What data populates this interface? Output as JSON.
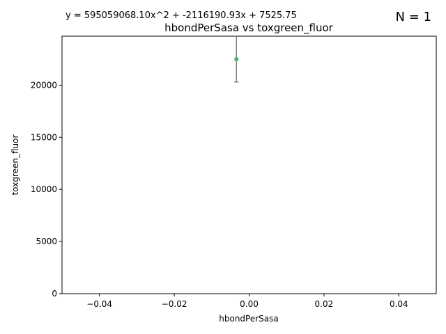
{
  "figure": {
    "equation": "y = 595059068.10x^2 + -2116190.93x + 7525.75",
    "n_label": "N = 1"
  },
  "chart_data": {
    "type": "scatter",
    "title": "hbondPerSasa vs toxgreen_fluor",
    "xlabel": "hbondPerSasa",
    "ylabel": "toxgreen_fluor",
    "xlim": [
      -0.05,
      0.05
    ],
    "ylim": [
      0,
      24700
    ],
    "xticks": [
      -0.04,
      -0.02,
      0.0,
      0.02,
      0.04
    ],
    "xtick_labels": [
      "−0.04",
      "−0.02",
      "0.00",
      "0.02",
      "0.04"
    ],
    "yticks": [
      0,
      5000,
      10000,
      15000,
      20000
    ],
    "ytick_labels": [
      "0",
      "5000",
      "10000",
      "15000",
      "20000"
    ],
    "grid": false,
    "points": [
      {
        "x": -0.0034,
        "y": 22500,
        "yerr_low": 20300,
        "yerr_high": 24700
      }
    ],
    "colors": {
      "point": "#3cb371",
      "errorbar": "#666666",
      "axes": "#000000"
    }
  }
}
